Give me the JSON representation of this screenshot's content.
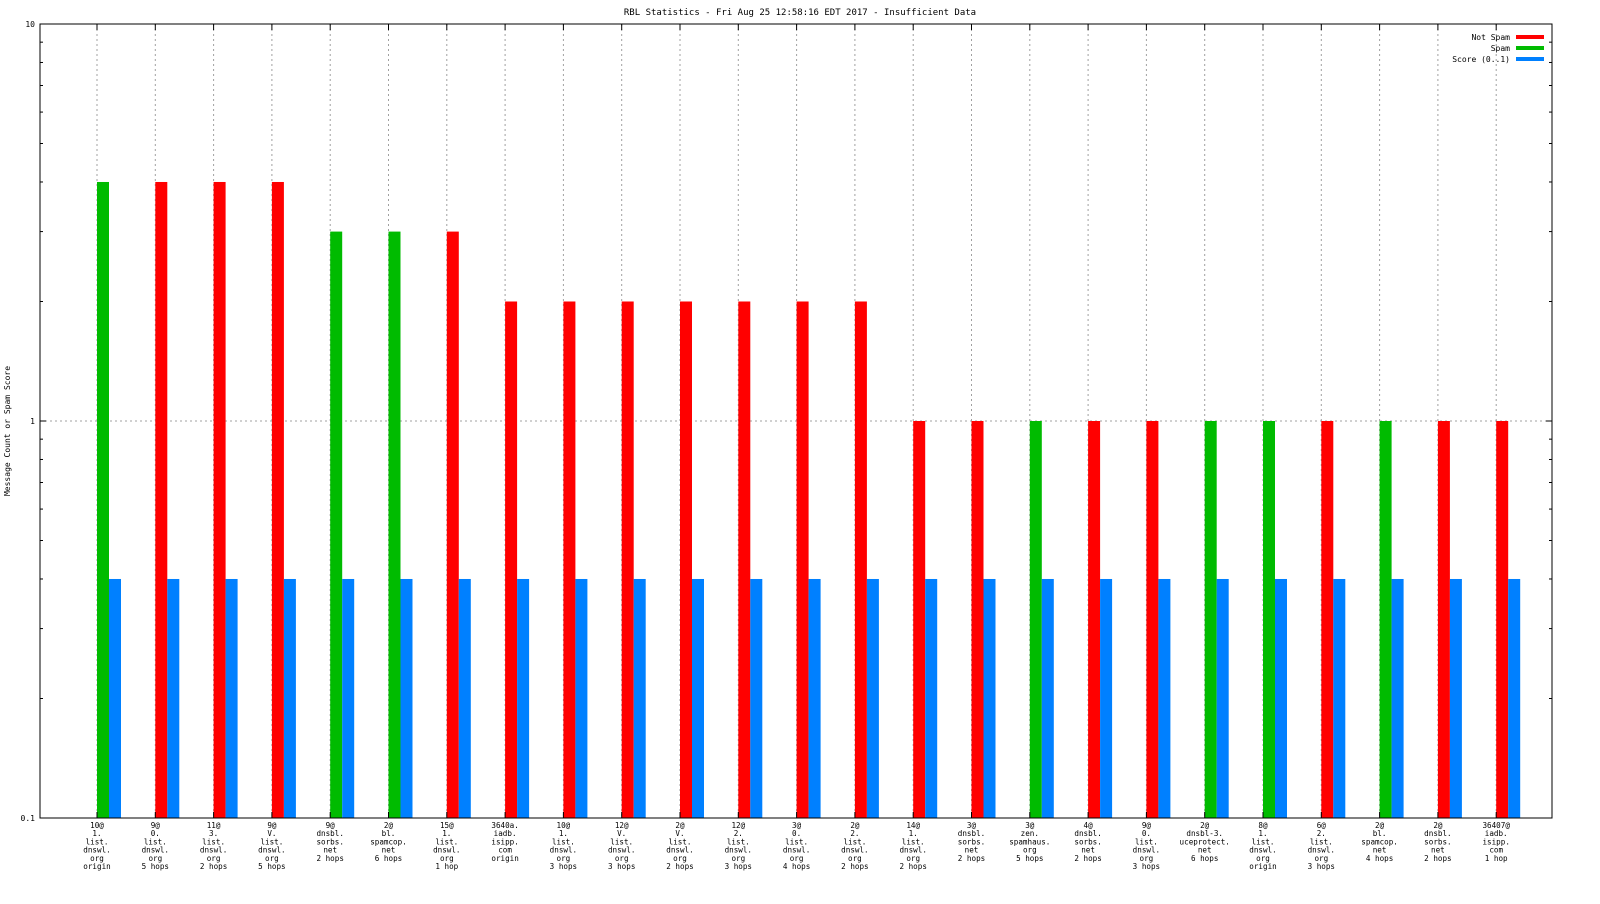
{
  "chart_data": {
    "type": "bar",
    "title": "RBL Statistics - Fri Aug 25 12:58:16 EDT 2017 - Insufficient Data",
    "ylabel": "Message Count or Spam Score",
    "xlabel": "",
    "yscale": "log",
    "ylim": [
      0.1,
      10
    ],
    "yticks": [
      "0.1",
      "1",
      "10"
    ],
    "grid": true,
    "legend_position": "top-right",
    "colors": {
      "not_spam": "#ff0000",
      "spam": "#00bb00",
      "score": "#0080ff"
    },
    "legend": [
      {
        "key": "not_spam",
        "label": "Not Spam"
      },
      {
        "key": "spam",
        "label": "Spam"
      },
      {
        "key": "score",
        "label": "Score (0..1)"
      }
    ],
    "categories": [
      [
        "10@",
        "1.",
        "list.",
        "dnswl.",
        "org",
        "origin"
      ],
      [
        "9@",
        "0.",
        "list.",
        "dnswl.",
        "org",
        "5 hops"
      ],
      [
        "11@",
        "3.",
        "list.",
        "dnswl.",
        "org",
        "2 hops"
      ],
      [
        "9@",
        "V.",
        "list.",
        "dnswl.",
        "org",
        "5 hops"
      ],
      [
        "9@",
        "dnsbl.",
        "sorbs.",
        "net",
        "2 hops"
      ],
      [
        "2@",
        "bl.",
        "spamcop.",
        "net",
        "6 hops"
      ],
      [
        "15@",
        "1.",
        "list.",
        "dnswl.",
        "org",
        "1 hop"
      ],
      [
        "3640a.",
        "iadb.",
        "isipp.",
        "com",
        "origin"
      ],
      [
        "10@",
        "1.",
        "list.",
        "dnswl.",
        "org",
        "3 hops"
      ],
      [
        "12@",
        "V.",
        "list.",
        "dnswl.",
        "org",
        "3 hops"
      ],
      [
        "2@",
        "V.",
        "list.",
        "dnswl.",
        "org",
        "2 hops"
      ],
      [
        "12@",
        "2.",
        "list.",
        "dnswl.",
        "org",
        "3 hops"
      ],
      [
        "3@",
        "0.",
        "list.",
        "dnswl.",
        "org",
        "4 hops"
      ],
      [
        "2@",
        "2.",
        "list.",
        "dnswl.",
        "org",
        "2 hops"
      ],
      [
        "14@",
        "1.",
        "list.",
        "dnswl.",
        "org",
        "2 hops"
      ],
      [
        "3@",
        "dnsbl.",
        "sorbs.",
        "net",
        "2 hops"
      ],
      [
        "3@",
        "zen.",
        "spamhaus.",
        "org",
        "5 hops"
      ],
      [
        "4@",
        "dnsbl.",
        "sorbs.",
        "net",
        "2 hops"
      ],
      [
        "9@",
        "0.",
        "list.",
        "dnswl.",
        "org",
        "3 hops"
      ],
      [
        "2@",
        "dnsbl-3.",
        "uceprotect.",
        "net",
        "6 hops"
      ],
      [
        "8@",
        "1.",
        "list.",
        "dnswl.",
        "org",
        "origin"
      ],
      [
        "6@",
        "2.",
        "list.",
        "dnswl.",
        "org",
        "3 hops"
      ],
      [
        "2@",
        "bl.",
        "spamcop.",
        "net",
        "4 hops"
      ],
      [
        "2@",
        "dnsbl.",
        "sorbs.",
        "net",
        "2 hops"
      ],
      [
        "36407@",
        "iadb.",
        "isipp.",
        "com",
        "1 hop"
      ]
    ],
    "series": [
      {
        "key": "primary",
        "kinds": [
          "spam",
          "not_spam",
          "not_spam",
          "not_spam",
          "spam",
          "spam",
          "not_spam",
          "not_spam",
          "not_spam",
          "not_spam",
          "not_spam",
          "not_spam",
          "not_spam",
          "not_spam",
          "not_spam",
          "not_spam",
          "spam",
          "not_spam",
          "not_spam",
          "spam",
          "spam",
          "not_spam",
          "spam",
          "not_spam",
          "not_spam"
        ],
        "values": [
          4,
          4,
          4,
          4,
          3,
          3,
          3,
          2,
          2,
          2,
          2,
          2,
          2,
          2,
          1,
          1,
          1,
          1,
          1,
          1,
          1,
          1,
          1,
          1,
          1
        ]
      },
      {
        "key": "score",
        "name": "Score (0..1)",
        "values": [
          0.4,
          0.4,
          0.4,
          0.4,
          0.4,
          0.4,
          0.4,
          0.4,
          0.4,
          0.4,
          0.4,
          0.4,
          0.4,
          0.4,
          0.4,
          0.4,
          0.4,
          0.4,
          0.4,
          0.4,
          0.4,
          0.4,
          0.4,
          0.4,
          0.4
        ]
      }
    ]
  }
}
